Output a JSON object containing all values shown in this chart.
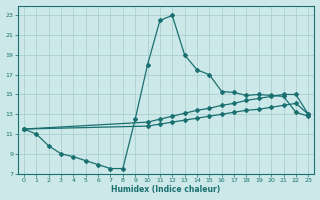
{
  "xlabel": "Humidex (Indice chaleur)",
  "xlim": [
    -0.5,
    23.5
  ],
  "ylim": [
    7,
    24
  ],
  "yticks": [
    7,
    9,
    11,
    13,
    15,
    17,
    19,
    21,
    23
  ],
  "xticks": [
    0,
    1,
    2,
    3,
    4,
    5,
    6,
    7,
    8,
    9,
    10,
    11,
    12,
    13,
    14,
    15,
    16,
    17,
    18,
    19,
    20,
    21,
    22,
    23
  ],
  "bg_color": "#cce8e8",
  "grid_color": "#aad0d0",
  "line_color": "#1a7070",
  "line1_x": [
    0,
    1,
    2,
    3,
    4,
    5,
    6,
    7,
    8,
    9,
    10,
    11,
    12,
    13,
    14,
    15,
    16,
    17,
    18,
    19,
    20,
    21,
    22,
    23
  ],
  "line1_y": [
    11.5,
    11.0,
    9.8,
    9.0,
    8.7,
    8.3,
    7.9,
    7.5,
    7.5,
    12.5,
    18.0,
    22.5,
    23.0,
    19.0,
    17.5,
    17.0,
    15.3,
    15.2,
    14.9,
    15.0,
    14.9,
    14.8,
    13.2,
    12.8
  ],
  "line2_x": [
    0,
    10,
    11,
    12,
    13,
    14,
    15,
    16,
    17,
    18,
    19,
    20,
    21,
    22,
    23
  ],
  "line2_y": [
    11.5,
    11.8,
    12.0,
    12.2,
    12.4,
    12.6,
    12.8,
    13.0,
    13.2,
    13.4,
    13.5,
    13.7,
    13.9,
    14.1,
    13.0
  ],
  "line3_x": [
    0,
    10,
    11,
    12,
    13,
    14,
    15,
    16,
    17,
    18,
    19,
    20,
    21,
    22,
    23
  ],
  "line3_y": [
    11.5,
    12.2,
    12.5,
    12.8,
    13.1,
    13.4,
    13.6,
    13.9,
    14.1,
    14.4,
    14.6,
    14.8,
    15.0,
    15.0,
    13.0
  ]
}
